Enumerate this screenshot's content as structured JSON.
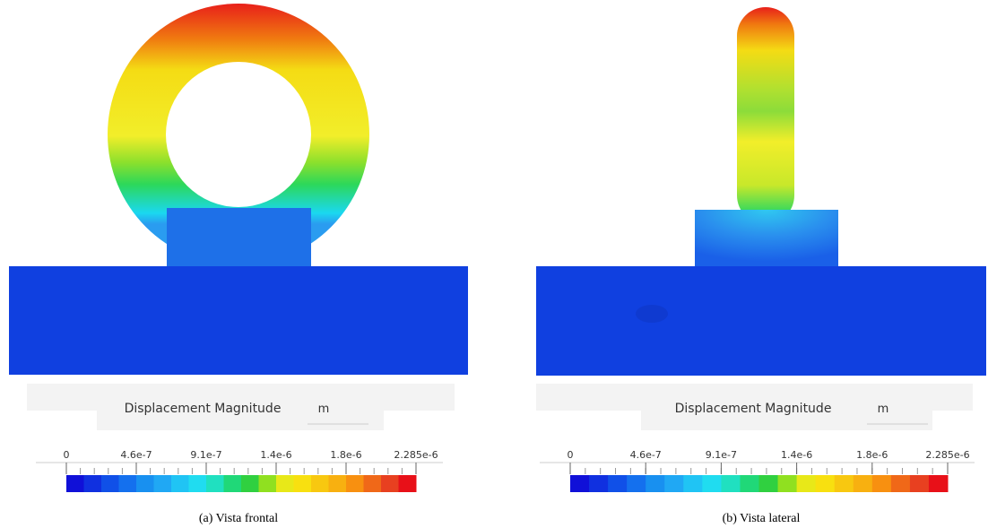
{
  "panels": [
    {
      "legend": {
        "title": "Displacement Magnitude",
        "unit": "m",
        "ticks": [
          "0",
          "4.6e-7",
          "9.1e-7",
          "1.4e-6",
          "1.8e-6",
          "2.285e-6"
        ]
      },
      "caption": "(a) Vista frontal"
    },
    {
      "legend": {
        "title": "Displacement Magnitude",
        "unit": "m",
        "ticks": [
          "0",
          "4.6e-7",
          "9.1e-7",
          "1.4e-6",
          "1.8e-6",
          "2.285e-6"
        ]
      },
      "caption": "(b) Vista lateral"
    }
  ]
}
